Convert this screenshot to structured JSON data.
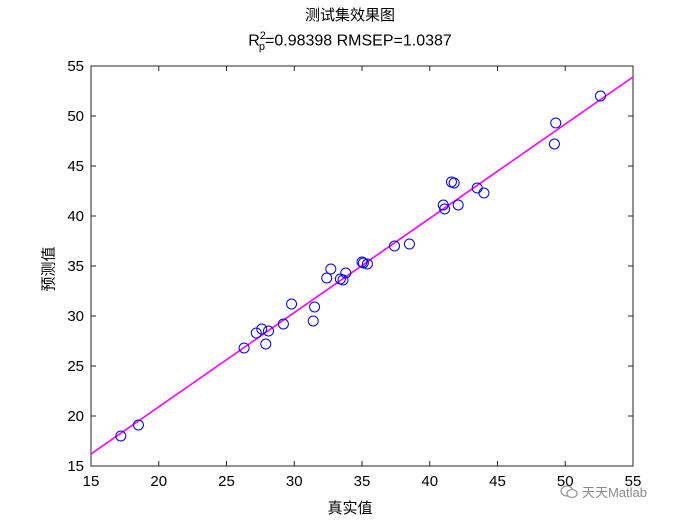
{
  "title": "测试集效果图",
  "subtitle": {
    "prefix": "R",
    "sup": "2",
    "sub": "p",
    "rest": "=0.98398  RMSEP=1.0387"
  },
  "xlabel": "真实值",
  "ylabel": "预测值",
  "watermark": "天天Matlab",
  "colors": {
    "points": "#0000ff",
    "line": "#ff00ff",
    "axis": "#262626"
  },
  "chart_data": {
    "type": "scatter",
    "xlim": [
      15,
      55
    ],
    "ylim": [
      15,
      55
    ],
    "xticks": [
      15,
      20,
      25,
      30,
      35,
      40,
      45,
      50,
      55
    ],
    "yticks": [
      15,
      20,
      25,
      30,
      35,
      40,
      45,
      50,
      55
    ],
    "grid": false,
    "marker": "circle-open",
    "points": [
      {
        "x": 17.2,
        "y": 18.0
      },
      {
        "x": 18.5,
        "y": 19.1
      },
      {
        "x": 26.3,
        "y": 26.8
      },
      {
        "x": 27.2,
        "y": 28.3
      },
      {
        "x": 27.6,
        "y": 28.7
      },
      {
        "x": 27.9,
        "y": 27.2
      },
      {
        "x": 28.1,
        "y": 28.5
      },
      {
        "x": 29.2,
        "y": 29.2
      },
      {
        "x": 29.8,
        "y": 31.2
      },
      {
        "x": 31.4,
        "y": 29.5
      },
      {
        "x": 31.5,
        "y": 30.9
      },
      {
        "x": 32.4,
        "y": 33.8
      },
      {
        "x": 32.7,
        "y": 34.7
      },
      {
        "x": 33.4,
        "y": 33.7
      },
      {
        "x": 33.6,
        "y": 33.6
      },
      {
        "x": 33.8,
        "y": 34.3
      },
      {
        "x": 35.0,
        "y": 35.4
      },
      {
        "x": 35.1,
        "y": 35.3
      },
      {
        "x": 35.4,
        "y": 35.2
      },
      {
        "x": 37.4,
        "y": 37.0
      },
      {
        "x": 38.5,
        "y": 37.2
      },
      {
        "x": 41.0,
        "y": 41.1
      },
      {
        "x": 41.1,
        "y": 40.7
      },
      {
        "x": 41.6,
        "y": 43.4
      },
      {
        "x": 41.8,
        "y": 43.3
      },
      {
        "x": 42.1,
        "y": 41.1
      },
      {
        "x": 43.5,
        "y": 42.8
      },
      {
        "x": 44.0,
        "y": 42.3
      },
      {
        "x": 49.2,
        "y": 47.2
      },
      {
        "x": 49.3,
        "y": 49.3
      },
      {
        "x": 52.6,
        "y": 52.0
      }
    ],
    "fit_line": {
      "x": [
        15,
        55
      ],
      "y": [
        16.2,
        53.9
      ]
    }
  }
}
